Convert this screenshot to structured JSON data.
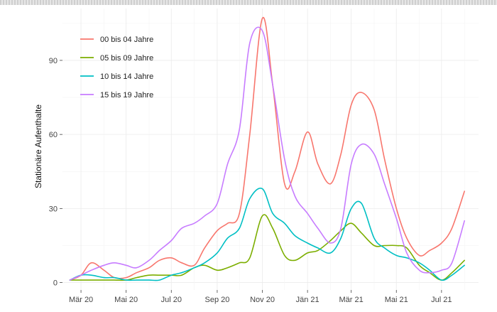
{
  "chart_data": {
    "type": "line",
    "title": "",
    "xlabel": "",
    "ylabel": "Stationäre Aufenthalte",
    "x_ticks": [
      "Mär 20",
      "Mai 20",
      "Jul 20",
      "Sep 20",
      "Nov 20",
      "Jän 21",
      "Mär 21",
      "Mai 21",
      "Jul 21"
    ],
    "x": [
      "2020-02-15",
      "2020-03-01",
      "2020-03-15",
      "2020-04-01",
      "2020-04-15",
      "2020-05-01",
      "2020-05-15",
      "2020-06-01",
      "2020-06-15",
      "2020-07-01",
      "2020-07-15",
      "2020-08-01",
      "2020-08-15",
      "2020-09-01",
      "2020-09-15",
      "2020-10-01",
      "2020-10-15",
      "2020-11-01",
      "2020-11-15",
      "2020-12-01",
      "2020-12-15",
      "2021-01-01",
      "2021-01-15",
      "2021-02-01",
      "2021-02-15",
      "2021-03-01",
      "2021-03-15",
      "2021-04-01",
      "2021-04-15",
      "2021-05-01",
      "2021-05-15",
      "2021-06-01",
      "2021-06-15",
      "2021-07-01",
      "2021-07-15",
      "2021-08-01"
    ],
    "ylim": [
      -3,
      111
    ],
    "y_ticks": [
      0,
      30,
      60,
      90
    ],
    "grid": true,
    "legend_position": "top-left",
    "series": [
      {
        "name": "00 bis 04 Jahre",
        "color": "#F8766D",
        "values": [
          1,
          3,
          8,
          5,
          2,
          2,
          4,
          6,
          9,
          10,
          8,
          7,
          14,
          21,
          24,
          28,
          60,
          107,
          80,
          40,
          45,
          61,
          48,
          40,
          52,
          72,
          77,
          70,
          50,
          30,
          18,
          11,
          13,
          16,
          22,
          37
        ]
      },
      {
        "name": "05 bis 09 Jahre",
        "color": "#7CAE00",
        "values": [
          1,
          1,
          1,
          1,
          1,
          1,
          2,
          3,
          3,
          3,
          3,
          6,
          7,
          5,
          6,
          8,
          10,
          27,
          22,
          11,
          9,
          12,
          13,
          17,
          21,
          24,
          20,
          15,
          15,
          15,
          14,
          7,
          4,
          1,
          4,
          9
        ]
      },
      {
        "name": "10 bis 14 Jahre",
        "color": "#00BFC4",
        "values": [
          1,
          3,
          3,
          2,
          2,
          1,
          1,
          1,
          1,
          3,
          4,
          6,
          8,
          12,
          18,
          22,
          34,
          38,
          28,
          24,
          19,
          16,
          14,
          12,
          18,
          30,
          32,
          18,
          14,
          11,
          10,
          8,
          5,
          1,
          3,
          7
        ]
      },
      {
        "name": "15 bis 19 Jahre",
        "color": "#C77CFF",
        "values": [
          1,
          3,
          5,
          7,
          8,
          7,
          6,
          9,
          13,
          17,
          22,
          24,
          27,
          32,
          48,
          62,
          97,
          102,
          80,
          50,
          35,
          28,
          22,
          16,
          22,
          48,
          56,
          52,
          40,
          26,
          12,
          5,
          4,
          5,
          8,
          25
        ]
      }
    ]
  }
}
